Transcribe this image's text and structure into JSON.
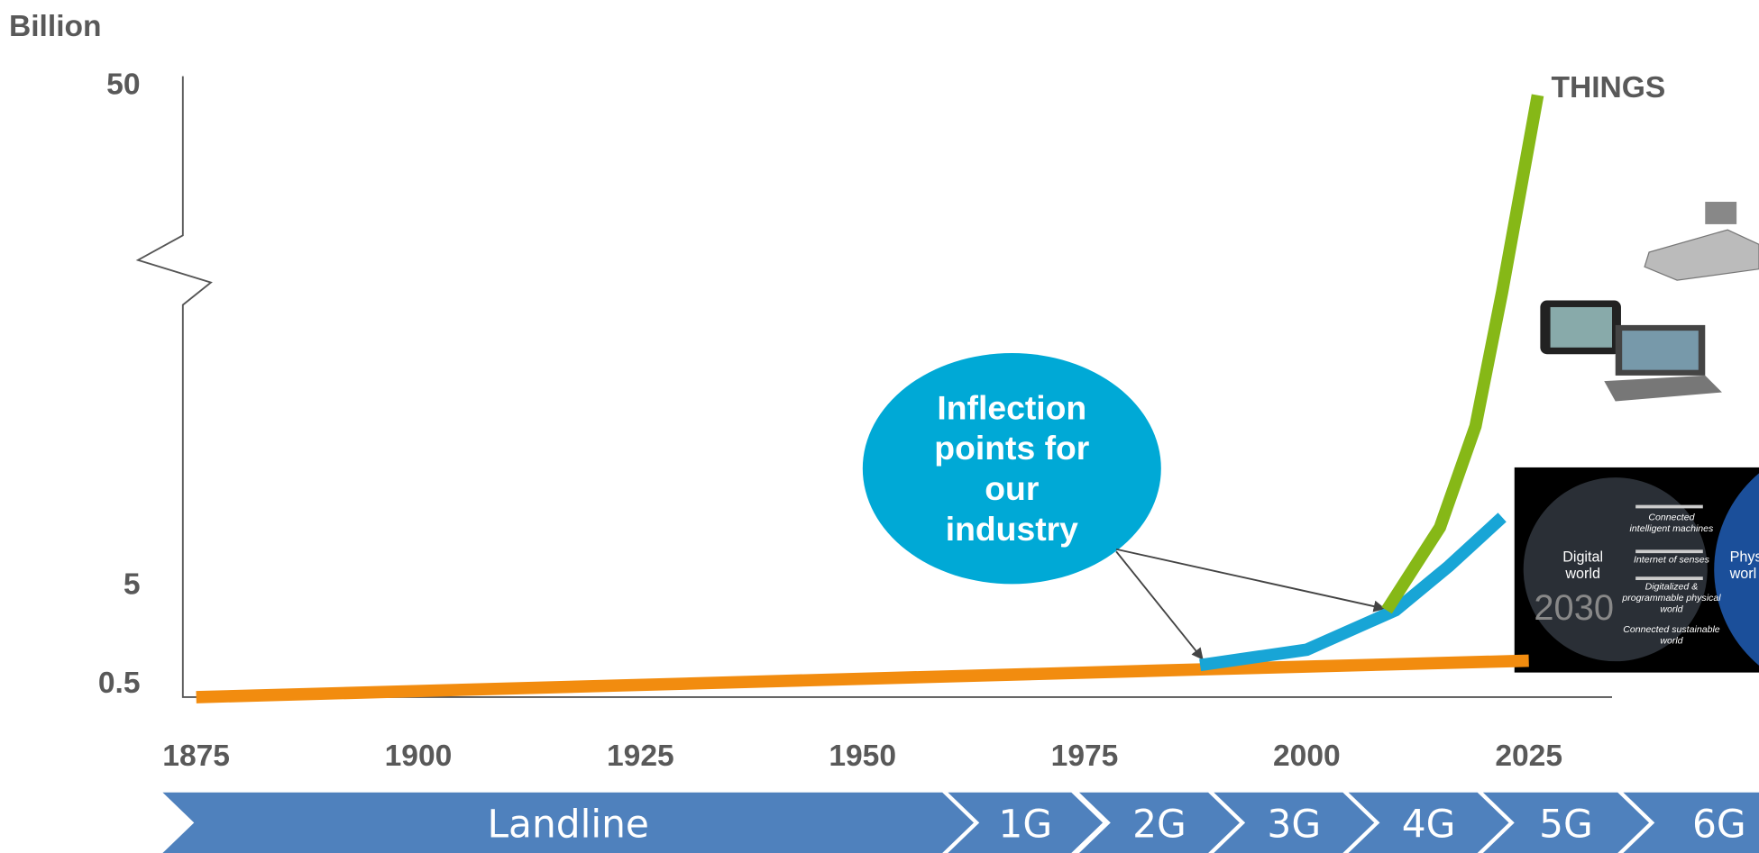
{
  "chart_data": {
    "type": "line",
    "y_label": "Billion",
    "xlim": [
      1874,
      2035
    ],
    "xticks": [
      1875,
      1900,
      1925,
      1950,
      1975,
      2000,
      2025
    ],
    "ylim": [
      0,
      50
    ],
    "yticks": [
      0.5,
      5,
      50
    ],
    "axis_break": true,
    "series": [
      {
        "color": "#f28c0f",
        "x": [
          1875,
          1988,
          2025
        ],
        "values": [
          0,
          1.1,
          1.5
        ]
      },
      {
        "color": "#18a5d6",
        "x": [
          1988,
          2000,
          2010,
          2016,
          2022
        ],
        "values": [
          1.3,
          2.0,
          3.8,
          6.6,
          11
        ]
      },
      {
        "name": "THINGS",
        "color": "#86b817",
        "x": [
          2009,
          2015,
          2019,
          2022,
          2026
        ],
        "values": [
          3.8,
          10.1,
          19.2,
          31.3,
          49
        ]
      }
    ],
    "annotation": [
      "Inflection",
      "points for",
      "our",
      "industry"
    ],
    "timeline": [
      "Landline",
      "1G",
      "2G",
      "3G",
      "4G",
      "5G",
      "6G"
    ],
    "inset": {
      "left": [
        "Digital",
        "world"
      ],
      "right": [
        "Phys",
        "worl"
      ],
      "year": "2030",
      "rows": [
        [
          "Connected",
          "intelligent machines"
        ],
        [
          "Internet of senses"
        ],
        [
          "Digitalized &",
          "programmable physical",
          "world"
        ],
        [
          "Connected sustainable",
          "world"
        ]
      ]
    }
  }
}
